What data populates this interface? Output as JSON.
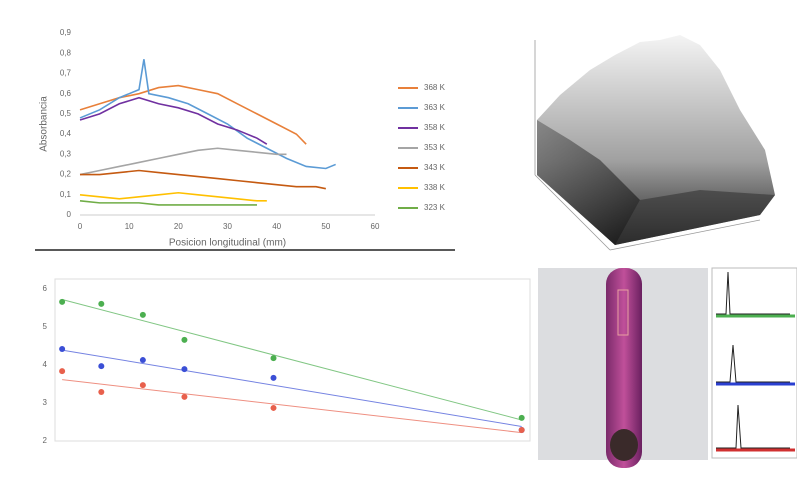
{
  "chart_data": [
    {
      "type": "line",
      "xlabel": "Posicion longitudinal (mm)",
      "ylabel": "Absorbancia",
      "xlim": [
        0,
        60
      ],
      "xticks": [
        0,
        10,
        20,
        30,
        40,
        50,
        60
      ],
      "ylim": [
        0,
        0.9
      ],
      "yticks": [
        0,
        {
          "value": 0.1,
          "label": "0,1"
        },
        {
          "value": 0.2,
          "label": "0,2"
        },
        {
          "value": 0.3,
          "label": "0,3"
        },
        {
          "value": 0.4,
          "label": "0,4"
        },
        {
          "value": 0.5,
          "label": "0,5"
        },
        {
          "value": 0.6,
          "label": "0,6"
        },
        {
          "value": 0.7,
          "label": "0,7"
        },
        {
          "value": 0.8,
          "label": "0,8"
        },
        {
          "value": 0.9,
          "label": "0,9"
        }
      ],
      "legend": "right",
      "series": [
        {
          "name": "368 K",
          "color": "#e8803a",
          "x": [
            0,
            4,
            8,
            12,
            16,
            20,
            24,
            28,
            32,
            36,
            40,
            44,
            46
          ],
          "values": [
            0.52,
            0.55,
            0.58,
            0.6,
            0.63,
            0.64,
            0.62,
            0.6,
            0.55,
            0.5,
            0.45,
            0.4,
            0.35
          ]
        },
        {
          "name": "363 K",
          "color": "#5b9bd5",
          "x": [
            0,
            4,
            8,
            12,
            13,
            14,
            18,
            22,
            26,
            30,
            34,
            38,
            42,
            46,
            50,
            52
          ],
          "values": [
            0.48,
            0.52,
            0.58,
            0.62,
            0.77,
            0.6,
            0.58,
            0.55,
            0.5,
            0.45,
            0.38,
            0.33,
            0.28,
            0.24,
            0.23,
            0.25
          ]
        },
        {
          "name": "358 K",
          "color": "#7030a0",
          "x": [
            0,
            4,
            8,
            12,
            16,
            20,
            24,
            28,
            32,
            36,
            38
          ],
          "values": [
            0.47,
            0.5,
            0.55,
            0.58,
            0.55,
            0.53,
            0.5,
            0.45,
            0.42,
            0.38,
            0.35
          ]
        },
        {
          "name": "353 K",
          "color": "#a5a5a5",
          "x": [
            0,
            4,
            8,
            12,
            16,
            20,
            24,
            28,
            32,
            36,
            40,
            42
          ],
          "values": [
            0.2,
            0.22,
            0.24,
            0.26,
            0.28,
            0.3,
            0.32,
            0.33,
            0.32,
            0.31,
            0.3,
            0.3
          ]
        },
        {
          "name": "343 K",
          "color": "#c55a11",
          "x": [
            0,
            4,
            8,
            12,
            16,
            20,
            24,
            28,
            32,
            36,
            40,
            44,
            48,
            50
          ],
          "values": [
            0.2,
            0.2,
            0.21,
            0.22,
            0.21,
            0.2,
            0.19,
            0.18,
            0.17,
            0.16,
            0.15,
            0.14,
            0.14,
            0.13
          ]
        },
        {
          "name": "338 K",
          "color": "#ffc000",
          "x": [
            0,
            4,
            8,
            12,
            16,
            20,
            24,
            28,
            32,
            36,
            38
          ],
          "values": [
            0.1,
            0.09,
            0.08,
            0.09,
            0.1,
            0.11,
            0.1,
            0.09,
            0.08,
            0.07,
            0.07
          ]
        },
        {
          "name": "323 K",
          "color": "#70ad47",
          "x": [
            0,
            4,
            8,
            12,
            16,
            20,
            24,
            28,
            32,
            36
          ],
          "values": [
            0.07,
            0.06,
            0.06,
            0.06,
            0.05,
            0.05,
            0.05,
            0.05,
            0.05,
            0.05
          ]
        }
      ]
    },
    {
      "type": "scatter",
      "xlim": [
        0.0027,
        0.0031
      ],
      "ylim": [
        2,
        6
      ],
      "yticks": [
        2,
        3,
        4,
        5,
        6
      ],
      "trendline": true,
      "series": [
        {
          "color": "#4caf50",
          "x": [
            0.002706,
            0.002739,
            0.002774,
            0.002809,
            0.002884,
            0.003093
          ],
          "values": [
            5.66,
            5.61,
            5.32,
            4.66,
            4.18,
            2.61
          ]
        },
        {
          "color": "#3b4fd6",
          "x": [
            0.002706,
            0.002739,
            0.002774,
            0.002809,
            0.002884,
            0.003093
          ],
          "values": [
            4.42,
            3.97,
            4.13,
            3.89,
            3.66,
            2.29
          ]
        },
        {
          "color": "#e8604c",
          "x": [
            0.002706,
            0.002739,
            0.002774,
            0.002809,
            0.002884,
            0.003093
          ],
          "values": [
            3.84,
            3.29,
            3.47,
            3.16,
            2.87,
            2.29
          ]
        }
      ]
    }
  ]
}
